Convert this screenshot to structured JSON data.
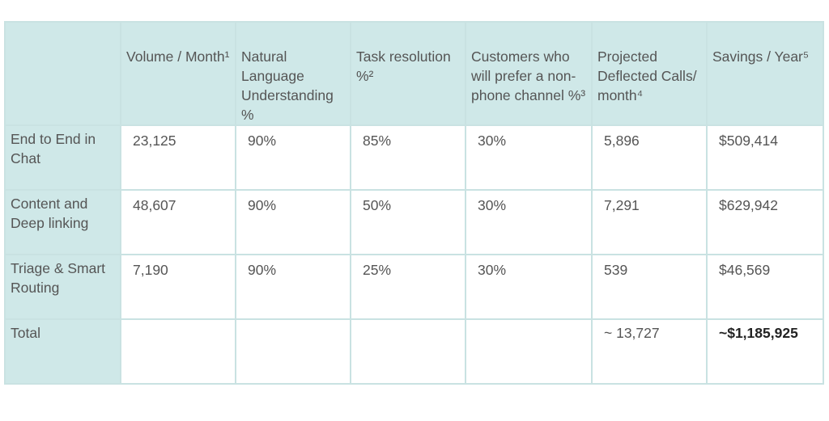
{
  "table": {
    "headers": [
      "",
      "Volume / Month¹",
      "Natural Language Understanding %",
      "Task resolution %²",
      "Customers who will prefer a non-phone channel %³",
      "Projected Deflected Calls/ month⁴",
      "Savings / Year⁵"
    ],
    "rows": [
      {
        "label": "End to End in Chat",
        "cells": [
          "23,125",
          "90%",
          "85%",
          "30%",
          "5,896",
          "$509,414"
        ]
      },
      {
        "label": "Content and Deep linking",
        "cells": [
          "48,607",
          "90%",
          "50%",
          "30%",
          "7,291",
          "$629,942"
        ]
      },
      {
        "label": "Triage & Smart Routing",
        "cells": [
          "7,190",
          "90%",
          "25%",
          "30%",
          "539",
          "$46,569"
        ]
      }
    ],
    "total": {
      "label": "Total",
      "cells": [
        "",
        "",
        "",
        "",
        "~ 13,727",
        "~$1,185,925"
      ]
    },
    "colors": {
      "header_bg": "#cfe8e8",
      "border": "#c9e2e2",
      "text": "#555555"
    }
  }
}
